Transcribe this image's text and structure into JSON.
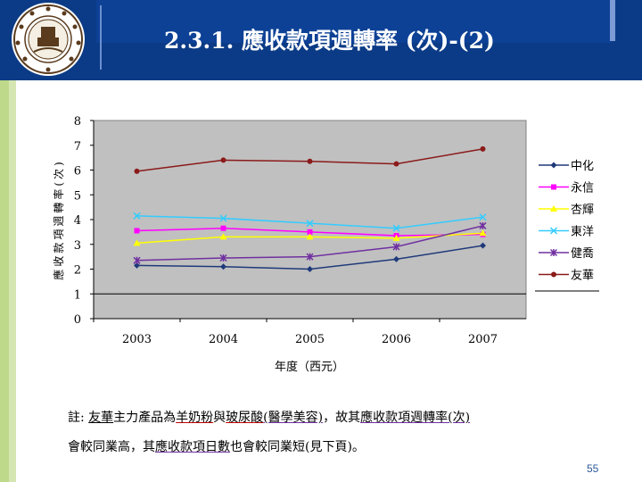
{
  "slide": {
    "title": "2.3.1. 應收款項週轉率 (次)-(2)",
    "page_number": "55",
    "note_line1": {
      "prefix": "註: ",
      "company": "友華",
      "mid1": "主力產品為",
      "product1": "羊奶粉",
      "mid2": "與",
      "product2": "玻尿酸",
      "paren": "(醫學美容)",
      "mid3": "，故其",
      "term": "應收款項週轉率(次)"
    },
    "note_line2": {
      "prefix": "會較同業高，其",
      "term": "應收款項日數",
      "suffix": "也會較同業短(見下頁)。"
    }
  },
  "colors": {
    "header": "#0b3b86",
    "plot_bg": "#c0c0c0"
  },
  "chart_data": {
    "type": "line",
    "title": "",
    "xlabel": "年度（西元）",
    "ylabel": "應收款項週轉率(次)",
    "categories": [
      "2003",
      "2004",
      "2005",
      "2006",
      "2007"
    ],
    "ylim": [
      0,
      8
    ],
    "yticks": [
      "0",
      "1",
      "2",
      "3",
      "4",
      "5",
      "6",
      "7",
      "8"
    ],
    "grid": "horizontal line at 1",
    "legend_position": "right",
    "series": [
      {
        "name": "中化",
        "color": "#1f3a7a",
        "marker": "diamond",
        "values": [
          2.15,
          2.1,
          2.0,
          2.4,
          2.95
        ]
      },
      {
        "name": "永信",
        "color": "#ff00ff",
        "marker": "square",
        "values": [
          3.55,
          3.65,
          3.5,
          3.35,
          3.4
        ]
      },
      {
        "name": "杏輝",
        "color": "#ffff00",
        "marker": "triangle",
        "values": [
          3.05,
          3.3,
          3.3,
          3.25,
          3.45
        ]
      },
      {
        "name": "東洋",
        "color": "#33ccff",
        "marker": "x",
        "values": [
          4.15,
          4.05,
          3.85,
          3.65,
          4.1
        ]
      },
      {
        "name": "健喬",
        "color": "#7030a0",
        "marker": "star",
        "values": [
          2.35,
          2.45,
          2.5,
          2.9,
          3.75
        ]
      },
      {
        "name": "友華",
        "color": "#8b1a1a",
        "marker": "circle",
        "values": [
          5.95,
          6.4,
          6.35,
          6.25,
          6.85
        ]
      }
    ]
  }
}
